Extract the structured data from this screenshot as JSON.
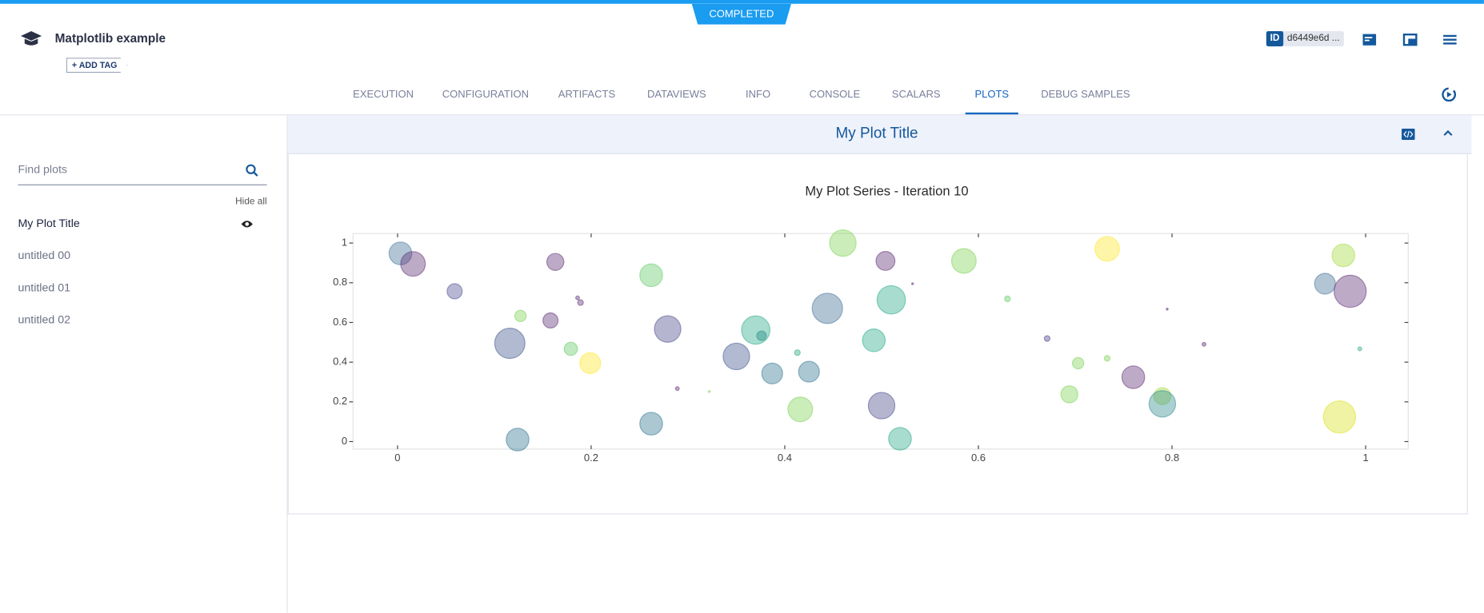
{
  "header": {
    "status": "COMPLETED",
    "title": "Matplotlib example",
    "add_tag": "ADD TAG",
    "id_label": "ID",
    "id_value": "d6449e6d ..."
  },
  "tabs": [
    "EXECUTION",
    "CONFIGURATION",
    "ARTIFACTS",
    "DATAVIEWS",
    "INFO",
    "CONSOLE",
    "SCALARS",
    "PLOTS",
    "DEBUG SAMPLES"
  ],
  "sidebar": {
    "search_placeholder": "Find plots",
    "hide_all": "Hide all",
    "plots": [
      "My Plot Title",
      "untitled 00",
      "untitled 01",
      "untitled 02"
    ]
  },
  "panel": {
    "title": "My Plot Title"
  },
  "chart_data": {
    "type": "scatter",
    "title": "My Plot Series - Iteration 10",
    "x": [
      0.003,
      0.016,
      0.059,
      0.163,
      0.127,
      0.116,
      0.158,
      0.186,
      0.189,
      0.179,
      0.199,
      0.124,
      0.262,
      0.279,
      0.289,
      0.262,
      0.35,
      0.37,
      0.376,
      0.387,
      0.413,
      0.425,
      0.416,
      0.444,
      0.46,
      0.504,
      0.51,
      0.492,
      0.5,
      0.519,
      0.532,
      0.585,
      0.63,
      0.671,
      0.703,
      0.733,
      0.694,
      0.733,
      0.76,
      0.79,
      0.79,
      0.795,
      0.833,
      0.977,
      0.958,
      0.984,
      0.994,
      0.973,
      0.322
    ],
    "y": [
      0.948,
      0.895,
      0.757,
      0.905,
      0.633,
      0.495,
      0.61,
      0.724,
      0.7,
      0.467,
      0.395,
      0.01,
      0.838,
      0.567,
      0.267,
      0.09,
      0.429,
      0.562,
      0.533,
      0.343,
      0.448,
      0.352,
      0.162,
      0.671,
      1.0,
      0.91,
      0.714,
      0.51,
      0.181,
      0.014,
      0.795,
      0.91,
      0.719,
      0.519,
      0.395,
      0.419,
      0.238,
      0.971,
      0.324,
      0.229,
      0.19,
      0.667,
      0.49,
      0.938,
      0.795,
      0.757,
      0.467,
      0.124,
      0.252
    ],
    "sizes": [
      12,
      13,
      8,
      9,
      6,
      16,
      8,
      2,
      3,
      7,
      11,
      12,
      12,
      14,
      2,
      12,
      14,
      15,
      5,
      11,
      3,
      11,
      13,
      16,
      14,
      10,
      15,
      12,
      14,
      12,
      1,
      13,
      3,
      3,
      6,
      3,
      9,
      13,
      12,
      9,
      14,
      1,
      2,
      12,
      11,
      17,
      2,
      17,
      1
    ],
    "colors": [
      "#3e6f96",
      "#5b2a72",
      "#4a4a90",
      "#5b2a72",
      "#7ad151",
      "#3b528b",
      "#5b2a72",
      "#5b2a72",
      "#5b2a72",
      "#5ec962",
      "#fde725",
      "#2c728e",
      "#5ec962",
      "#46468a",
      "#5b2a72",
      "#2c728e",
      "#3b528b",
      "#22a884",
      "#1f8a84",
      "#2c728e",
      "#22a884",
      "#2c728e",
      "#7ad151",
      "#3b6c94",
      "#7ad151",
      "#5b2a72",
      "#22a884",
      "#22a884",
      "#46468a",
      "#22a884",
      "#5b2a72",
      "#7ad151",
      "#5ec962",
      "#4a3a88",
      "#7ad151",
      "#7ad151",
      "#7ad151",
      "#fde725",
      "#5b2a72",
      "#a0da39",
      "#2c8a8e",
      "#5b2a72",
      "#5b2a72",
      "#a0da39",
      "#3e6f96",
      "#5b2a72",
      "#22a884",
      "#d8e219",
      "#7ad151"
    ],
    "xlim": [
      -0.046,
      1.044
    ],
    "ylim": [
      -0.038,
      1.048
    ],
    "xticks": [
      0,
      0.2,
      0.4,
      0.6,
      0.8,
      1
    ],
    "yticks": [
      0,
      0.2,
      0.4,
      0.6,
      0.8,
      1
    ]
  }
}
